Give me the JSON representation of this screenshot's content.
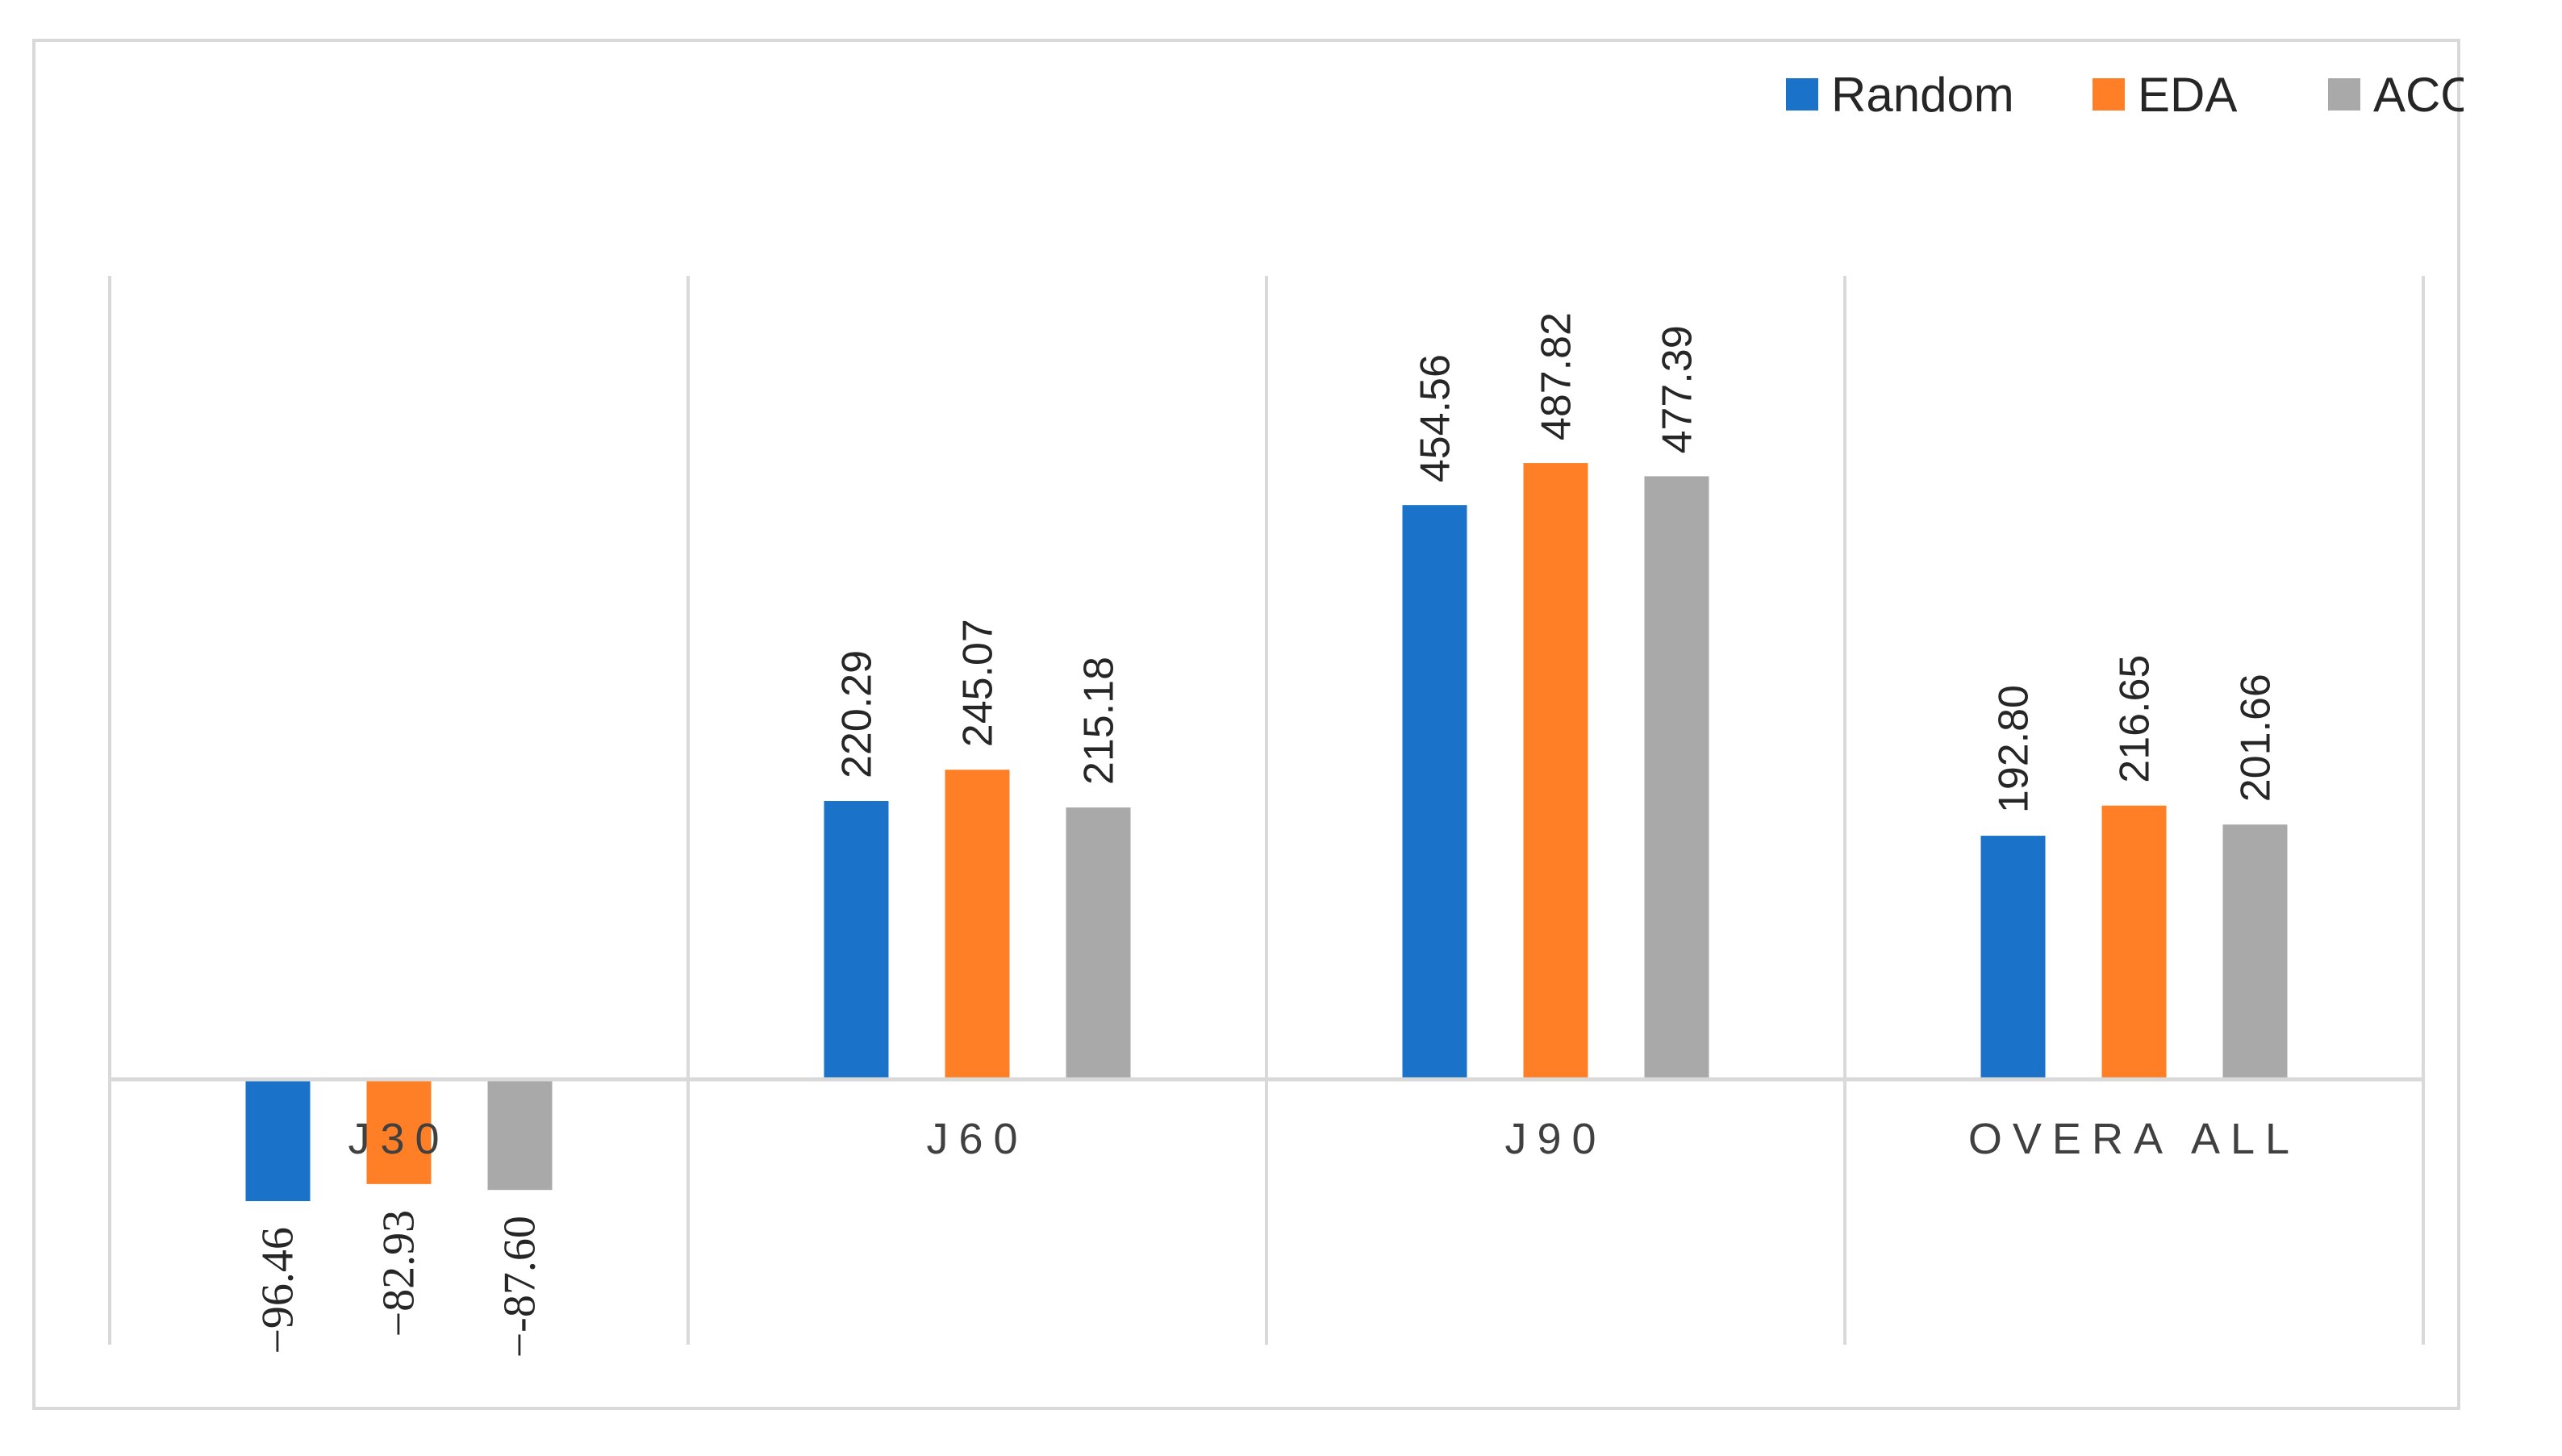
{
  "chart_data": {
    "type": "bar",
    "categories": [
      "J30",
      "J60",
      "J90",
      "OVERA ALL"
    ],
    "series": [
      {
        "name": "Random",
        "color": "#1a73c8",
        "values": [
          -96.46,
          220.29,
          454.56,
          192.8
        ],
        "labels": [
          "−96.46",
          "220.29",
          "454.56",
          "192.80"
        ]
      },
      {
        "name": "EDA",
        "color": "#ff7f27",
        "values": [
          -82.93,
          245.07,
          487.82,
          216.65
        ],
        "labels": [
          "−82.93",
          "245.07",
          "487.82",
          "216.65"
        ]
      },
      {
        "name": "ACO",
        "color": "#a9a9a9",
        "values": [
          -87.6,
          215.18,
          477.39,
          201.66
        ],
        "labels": [
          "−-87.60",
          "215.18",
          "477.39",
          "201.66"
        ]
      }
    ],
    "grid": {
      "horizontal": false,
      "vertical": true
    },
    "legend": {
      "position": "top-right"
    },
    "value_axis_visible": false
  }
}
